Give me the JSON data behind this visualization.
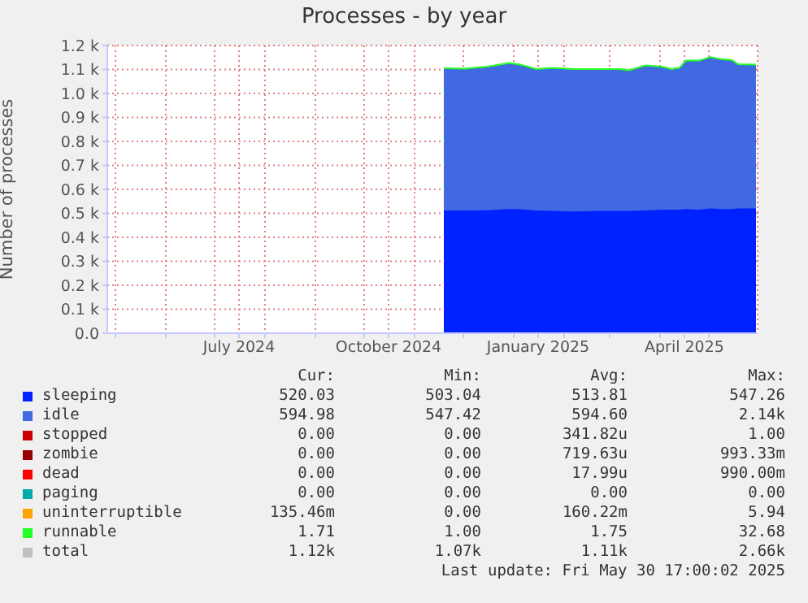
{
  "chart_data": {
    "type": "area",
    "title": "Processes - by year",
    "ylabel": "Number of processes",
    "stacked": true,
    "grid": true,
    "legend": "bottom",
    "x": [
      "2024-11-19",
      "2024-12-02",
      "2024-12-16",
      "2024-12-29",
      "2025-01-05",
      "2025-01-15",
      "2025-01-25",
      "2025-02-07",
      "2025-02-20",
      "2025-03-06",
      "2025-03-13",
      "2025-03-23",
      "2025-04-02",
      "2025-04-08",
      "2025-04-13",
      "2025-04-17",
      "2025-04-25",
      "2025-05-02",
      "2025-05-09",
      "2025-05-15",
      "2025-05-19",
      "2025-05-30"
    ],
    "xlim": [
      "2024-04-26",
      "2025-05-31"
    ],
    "xticks": [
      {
        "value": "2024-05-01",
        "label": null
      },
      {
        "value": "2024-06-01",
        "label": null
      },
      {
        "value": "2024-07-01",
        "label": null
      },
      {
        "value": "2024-07-16",
        "label": "July 2024"
      },
      {
        "value": "2024-08-01",
        "label": null
      },
      {
        "value": "2024-09-01",
        "label": null
      },
      {
        "value": "2024-10-01",
        "label": null
      },
      {
        "value": "2024-10-16",
        "label": "October 2024"
      },
      {
        "value": "2024-11-01",
        "label": null
      },
      {
        "value": "2024-12-01",
        "label": null
      },
      {
        "value": "2025-01-01",
        "label": null
      },
      {
        "value": "2025-01-16",
        "label": "January 2025"
      },
      {
        "value": "2025-02-01",
        "label": null
      },
      {
        "value": "2025-03-01",
        "label": null
      },
      {
        "value": "2025-04-01",
        "label": null
      },
      {
        "value": "2025-04-16",
        "label": "April 2025"
      },
      {
        "value": "2025-05-01",
        "label": null
      }
    ],
    "ylim": [
      0,
      1200
    ],
    "yticks": [
      {
        "value": 0,
        "label": "0.0"
      },
      {
        "value": 100,
        "label": "0.1 k"
      },
      {
        "value": 200,
        "label": "0.2 k"
      },
      {
        "value": 300,
        "label": "0.3 k"
      },
      {
        "value": 400,
        "label": "0.4 k"
      },
      {
        "value": 500,
        "label": "0.5 k"
      },
      {
        "value": 600,
        "label": "0.6 k"
      },
      {
        "value": 700,
        "label": "0.7 k"
      },
      {
        "value": 800,
        "label": "0.8 k"
      },
      {
        "value": 900,
        "label": "0.9 k"
      },
      {
        "value": 1000,
        "label": "1.0 k"
      },
      {
        "value": 1100,
        "label": "1.1 k"
      },
      {
        "value": 1200,
        "label": "1.2 k"
      }
    ],
    "series": [
      {
        "name": "sleeping",
        "color": "#0022ff",
        "values": [
          512,
          512,
          513,
          518,
          517,
          512,
          510,
          508,
          510,
          510,
          510,
          512,
          515,
          515,
          515,
          518,
          515,
          520,
          518,
          518,
          520,
          520
        ]
      },
      {
        "name": "idle",
        "color": "#4169e1",
        "values": [
          591,
          589,
          597,
          607,
          601,
          588,
          595,
          592,
          590,
          590,
          585,
          603,
          595,
          585,
          590,
          617,
          620,
          630,
          622,
          620,
          600,
          598
        ]
      },
      {
        "name": "stopped",
        "color": "#cc0000",
        "values": [
          null,
          null,
          null,
          null,
          null,
          null,
          null,
          null,
          null,
          null,
          null,
          null,
          null,
          null,
          null,
          null,
          null,
          null,
          null,
          null,
          null,
          null
        ]
      },
      {
        "name": "zombie",
        "color": "#990000",
        "values": [
          null,
          null,
          null,
          null,
          null,
          null,
          null,
          null,
          null,
          null,
          null,
          null,
          null,
          null,
          null,
          null,
          null,
          null,
          null,
          null,
          null,
          null
        ]
      },
      {
        "name": "dead",
        "color": "#ff0000",
        "values": [
          null,
          null,
          null,
          null,
          null,
          null,
          null,
          null,
          null,
          null,
          null,
          null,
          null,
          null,
          null,
          null,
          null,
          null,
          null,
          null,
          null,
          null
        ]
      },
      {
        "name": "paging",
        "color": "#00aaaa",
        "values": [
          null,
          null,
          null,
          null,
          null,
          null,
          null,
          null,
          null,
          null,
          null,
          null,
          null,
          null,
          null,
          null,
          null,
          null,
          null,
          null,
          null,
          null
        ]
      },
      {
        "name": "uninterruptible",
        "color": "#ffa500",
        "values": [
          null,
          null,
          null,
          null,
          null,
          null,
          null,
          null,
          null,
          null,
          null,
          null,
          null,
          null,
          null,
          null,
          null,
          null,
          null,
          null,
          null,
          null
        ]
      },
      {
        "name": "runnable",
        "color": "#22ff22",
        "values": [
          2,
          2,
          2,
          2,
          2,
          2,
          2,
          2,
          2,
          2,
          2,
          2,
          2,
          2,
          2,
          2,
          2,
          2,
          2,
          2,
          2,
          2
        ]
      },
      {
        "name": "total",
        "color": "#c0c0c0",
        "values": [
          null,
          null,
          null,
          null,
          null,
          null,
          null,
          null,
          null,
          null,
          null,
          null,
          null,
          null,
          null,
          null,
          null,
          null,
          null,
          null,
          null,
          null
        ]
      }
    ],
    "annotations": [
      "Cur:",
      "Min:",
      "Avg:",
      "Max:",
      "520.03",
      "503.04",
      "513.81",
      "547.26",
      "594.98",
      "547.42",
      "594.60",
      "2.14k",
      "0.00",
      "0.00",
      "341.82u",
      "1.00",
      "0.00",
      "0.00",
      "719.63u",
      "993.33m",
      "0.00",
      "0.00",
      "17.99u",
      "990.00m",
      "0.00",
      "0.00",
      "0.00",
      "0.00",
      "135.46m",
      "0.00",
      "160.22m",
      "5.94",
      "1.71",
      "1.00",
      "1.75",
      "32.68",
      "1.12k",
      "1.07k",
      "1.11k",
      "2.66k",
      "Last update: Fri May 30 17:00:02 2025"
    ]
  }
}
